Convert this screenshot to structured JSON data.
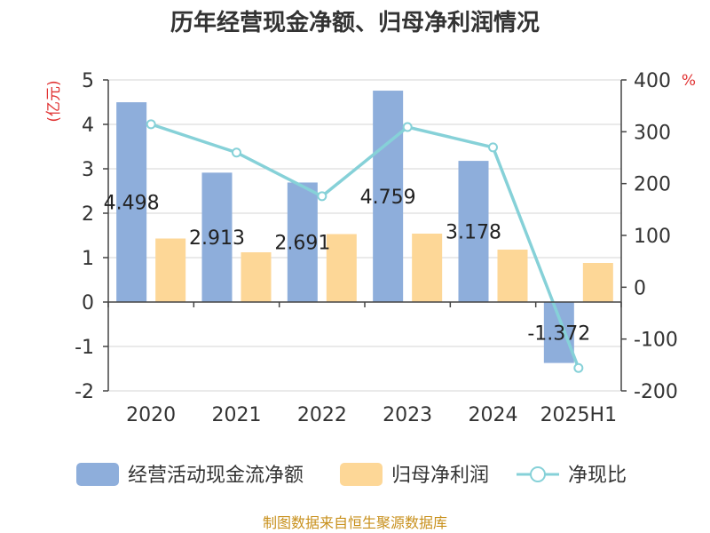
{
  "chart_data": {
    "type": "bar",
    "title": "历年经营现金净额、归母净利润情况",
    "categories": [
      "2020",
      "2021",
      "2022",
      "2023",
      "2024",
      "2025H1"
    ],
    "series": [
      {
        "name": "经营活动现金流净额",
        "type": "bar",
        "axis": "left",
        "color": "#8eaedb",
        "values": [
          4.498,
          2.913,
          2.691,
          4.759,
          3.178,
          -1.372
        ],
        "labels": [
          "4.498",
          "2.913",
          "2.691",
          "4.759",
          "3.178",
          "-1.372"
        ]
      },
      {
        "name": "归母净利润",
        "type": "bar",
        "axis": "left",
        "color": "#fdd797",
        "values": [
          1.43,
          1.12,
          1.53,
          1.54,
          1.18,
          0.88
        ]
      },
      {
        "name": "净现比",
        "type": "line",
        "axis": "right",
        "color": "#86d1d8",
        "values": [
          314.5,
          259.9,
          175.6,
          309.1,
          269.9,
          -155.9
        ]
      }
    ],
    "y_left": {
      "label": "(亿元)",
      "min": -2,
      "max": 5,
      "ticks": [
        "-2",
        "-1",
        "0",
        "1",
        "2",
        "3",
        "4",
        "5"
      ]
    },
    "y_right": {
      "label": "%",
      "min": -200,
      "max": 400,
      "ticks": [
        "-200",
        "-100",
        "0",
        "100",
        "200",
        "300",
        "400"
      ]
    },
    "grid": true,
    "legend_position": "bottom"
  },
  "source": "制图数据来自恒生聚源数据库"
}
